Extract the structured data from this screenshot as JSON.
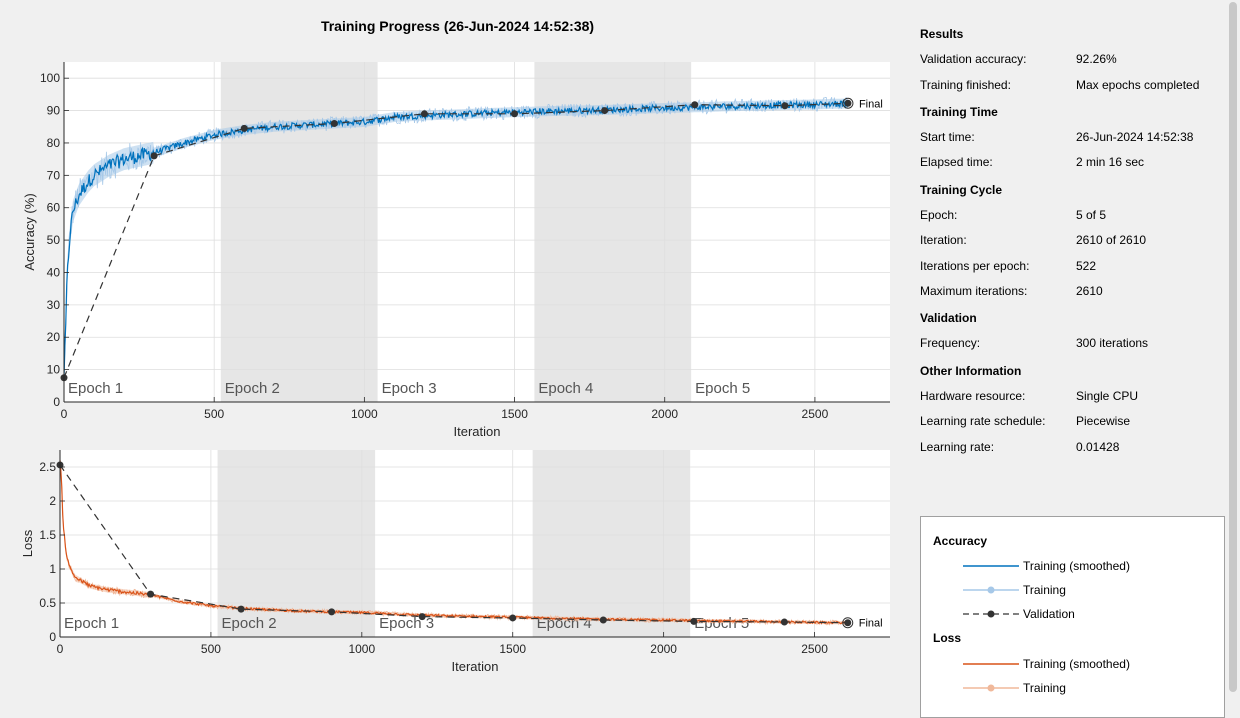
{
  "title": "Training Progress (26-Jun-2024 14:52:38)",
  "colors": {
    "accuracy": "#0072bd",
    "accuracy_raw": "#a6c8e8",
    "loss": "#d95319",
    "loss_raw": "#f0b89a",
    "validation": "#333333",
    "epoch_shade": "#e6e6e6"
  },
  "chart_data": [
    {
      "type": "line",
      "name": "accuracy",
      "xlabel": "Iteration",
      "ylabel": "Accuracy (%)",
      "xlim": [
        0,
        2750
      ],
      "ylim": [
        0,
        105
      ],
      "xticks": [
        0,
        500,
        1000,
        1500,
        2000,
        2500
      ],
      "yticks": [
        0,
        10,
        20,
        30,
        40,
        50,
        60,
        70,
        80,
        90,
        100
      ],
      "grid": true,
      "epochs": [
        {
          "label": "Epoch 1",
          "start": 0,
          "end": 522
        },
        {
          "label": "Epoch 2",
          "start": 522,
          "end": 1044
        },
        {
          "label": "Epoch 3",
          "start": 1044,
          "end": 1566
        },
        {
          "label": "Epoch 4",
          "start": 1566,
          "end": 2088
        },
        {
          "label": "Epoch 5",
          "start": 2088,
          "end": 2610
        }
      ],
      "smoothed_keypoints": {
        "x": [
          0,
          5,
          10,
          20,
          30,
          50,
          80,
          100,
          150,
          200,
          300,
          400,
          500,
          600,
          700,
          800,
          900,
          1000,
          1100,
          1200,
          1300,
          1400,
          1500,
          1600,
          1700,
          1800,
          1900,
          2000,
          2100,
          2200,
          2300,
          2400,
          2500,
          2610
        ],
        "y": [
          8,
          20,
          38,
          52,
          59,
          64,
          68,
          70,
          73,
          75,
          77,
          80,
          82.5,
          84,
          85,
          85.5,
          86,
          86.5,
          88,
          88.5,
          88.8,
          89.2,
          89.5,
          89.8,
          90,
          90.2,
          90.5,
          90.8,
          91,
          91.3,
          91.5,
          91.7,
          91.9,
          92.2
        ]
      },
      "validation": {
        "x": [
          0,
          300,
          600,
          900,
          1200,
          1500,
          1800,
          2100,
          2400,
          2610
        ],
        "y": [
          7.5,
          76,
          84.5,
          86,
          89,
          89,
          90,
          91.8,
          91.5,
          92.26
        ]
      },
      "final_label": "Final"
    },
    {
      "type": "line",
      "name": "loss",
      "xlabel": "Iteration",
      "ylabel": "Loss",
      "xlim": [
        0,
        2750
      ],
      "ylim": [
        0,
        2.75
      ],
      "xticks": [
        0,
        500,
        1000,
        1500,
        2000,
        2500
      ],
      "yticks": [
        0,
        0.5,
        1,
        1.5,
        2,
        2.5
      ],
      "grid": true,
      "epochs": [
        {
          "label": "Epoch 1",
          "start": 0,
          "end": 522
        },
        {
          "label": "Epoch 2",
          "start": 522,
          "end": 1044
        },
        {
          "label": "Epoch 3",
          "start": 1044,
          "end": 1566
        },
        {
          "label": "Epoch 4",
          "start": 1566,
          "end": 2088
        },
        {
          "label": "Epoch 5",
          "start": 2088,
          "end": 2610
        }
      ],
      "smoothed_keypoints": {
        "x": [
          0,
          5,
          10,
          20,
          30,
          50,
          80,
          100,
          150,
          200,
          300,
          400,
          500,
          600,
          700,
          800,
          900,
          1000,
          1100,
          1200,
          1300,
          1400,
          1500,
          1600,
          1700,
          1800,
          1900,
          2000,
          2100,
          2200,
          2300,
          2400,
          2500,
          2610
        ],
        "y": [
          2.6,
          2.3,
          1.7,
          1.25,
          1.05,
          0.88,
          0.8,
          0.75,
          0.7,
          0.67,
          0.62,
          0.52,
          0.46,
          0.42,
          0.4,
          0.38,
          0.37,
          0.36,
          0.34,
          0.32,
          0.31,
          0.3,
          0.29,
          0.28,
          0.27,
          0.26,
          0.255,
          0.25,
          0.24,
          0.235,
          0.23,
          0.22,
          0.215,
          0.21
        ]
      },
      "validation": {
        "x": [
          0,
          300,
          600,
          900,
          1200,
          1500,
          1800,
          2100,
          2400,
          2610
        ],
        "y": [
          2.53,
          0.63,
          0.41,
          0.37,
          0.3,
          0.28,
          0.25,
          0.23,
          0.22,
          0.21
        ]
      },
      "final_label": "Final"
    }
  ],
  "info": {
    "results_heading": "Results",
    "validation_accuracy_label": "Validation accuracy:",
    "validation_accuracy_value": "92.26%",
    "training_finished_label": "Training finished:",
    "training_finished_value": "Max epochs completed",
    "training_time_heading": "Training Time",
    "start_time_label": "Start time:",
    "start_time_value": "26-Jun-2024 14:52:38",
    "elapsed_time_label": "Elapsed time:",
    "elapsed_time_value": "2 min 16 sec",
    "training_cycle_heading": "Training Cycle",
    "epoch_label": "Epoch:",
    "epoch_value": "5 of 5",
    "iteration_label": "Iteration:",
    "iteration_value": "2610 of 2610",
    "iterations_per_epoch_label": "Iterations per epoch:",
    "iterations_per_epoch_value": "522",
    "maximum_iterations_label": "Maximum iterations:",
    "maximum_iterations_value": "2610",
    "validation_heading": "Validation",
    "frequency_label": "Frequency:",
    "frequency_value": "300 iterations",
    "other_info_heading": "Other Information",
    "hardware_label": "Hardware resource:",
    "hardware_value": "Single CPU",
    "lr_schedule_label": "Learning rate schedule:",
    "lr_schedule_value": "Piecewise",
    "lr_label": "Learning rate:",
    "lr_value": "0.01428"
  },
  "legend": {
    "accuracy_heading": "Accuracy",
    "acc_smoothed": "Training (smoothed)",
    "acc_training": "Training",
    "acc_validation": "Validation",
    "loss_heading": "Loss",
    "loss_smoothed": "Training (smoothed)",
    "loss_training": "Training"
  }
}
